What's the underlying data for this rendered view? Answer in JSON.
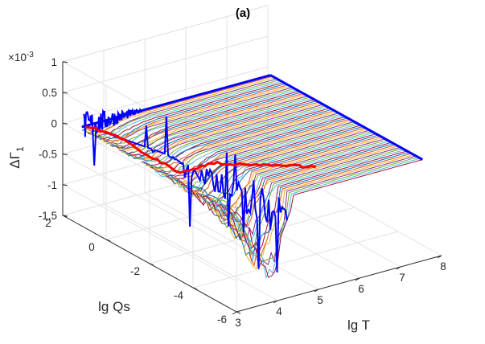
{
  "chart_data": {
    "type": "line3d",
    "title": "(a)",
    "xlabel": "lg T",
    "ylabel": "lg Qs",
    "zlabel": "ΔΓ",
    "zlabel_subscript": "1",
    "z_exponent_label": "×10",
    "z_exponent_power": "-3",
    "xlim": [
      3,
      8
    ],
    "ylim": [
      -6,
      2
    ],
    "zlim": [
      -1.5,
      1
    ],
    "xticks": [
      "3",
      "4",
      "5",
      "6",
      "7",
      "8"
    ],
    "yticks": [
      "-6",
      "-4",
      "-2",
      "0",
      "2"
    ],
    "zticks": [
      "-1.5",
      "-1",
      "-0.5",
      "0",
      "0.5",
      "1"
    ],
    "z_scale": 0.001,
    "grid": true,
    "series_description": "Family of about 70 curves ΔΓ1(lg T) at fixed lg Qs from 1.5 to -5.5; near zero for lg T > ~4.5, negative dip down to about -1.5e-3 at low lg T for low lg Qs",
    "boundary_series": {
      "x_high_edge": {
        "x": 7.8,
        "y_range": [
          1.5,
          -5.5
        ],
        "z": 0
      },
      "y_high_edge": {
        "y": 1.5,
        "x_range": [
          3.2,
          7.8
        ],
        "z": 0
      },
      "x_low_edge_spikes": {
        "x": 3.2,
        "y": [
          -1.5,
          -2.0,
          -2.5,
          -3.0,
          -3.5,
          -4.0,
          -4.5,
          -5.0,
          -5.5
        ],
        "z": [
          -0.3,
          -0.6,
          -0.5,
          -0.9,
          -0.7,
          -1.1,
          -0.8,
          -1.5,
          -1.3
        ]
      }
    },
    "crossover_line": {
      "points": [
        [
          3.3,
          1.5,
          0
        ],
        [
          3.6,
          0.5,
          -0.05
        ],
        [
          3.8,
          -0.5,
          -0.2
        ],
        [
          4.0,
          -1.5,
          -0.3
        ],
        [
          4.3,
          -2.5,
          0.0
        ],
        [
          4.6,
          -3.5,
          0.1
        ],
        [
          4.9,
          -4.5,
          0.25
        ],
        [
          5.2,
          -5.5,
          0.35
        ]
      ],
      "color": "#ff0000"
    },
    "colors": [
      "#0072bd",
      "#d95319",
      "#edb120",
      "#7e2f8e",
      "#77ac30",
      "#4dbeee",
      "#a2142f"
    ]
  }
}
